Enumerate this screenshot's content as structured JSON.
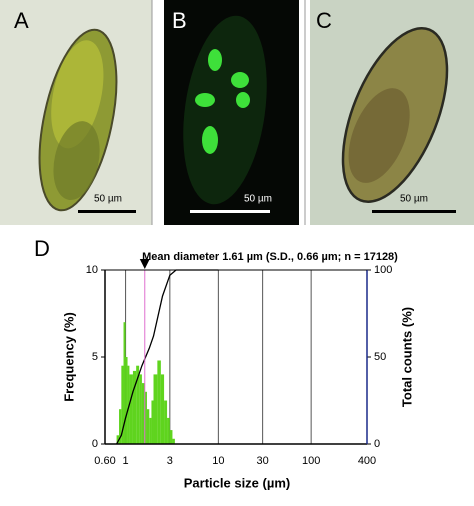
{
  "panels": [
    {
      "label": "A",
      "scale_bar": "50 µm"
    },
    {
      "label": "B",
      "scale_bar": "50 µm"
    },
    {
      "label": "C",
      "scale_bar": "50 µm"
    }
  ],
  "chart_data": {
    "type": "histogram",
    "label": "D",
    "annotation": "Mean diameter 1.61 µm (S.D., 0.66 µm; n = 17128)",
    "mean_marker": 1.61,
    "x_label": "Particle size (µm)",
    "y_label": "Frequency (%)",
    "y2_label": "Total counts (%)",
    "x_log": true,
    "xlim": [
      0.6,
      400
    ],
    "xticks": [
      {
        "value": 0.6,
        "label": "0.60"
      },
      1,
      3,
      10,
      30,
      100,
      400
    ],
    "ylim": [
      0,
      10
    ],
    "yticks": [
      0,
      5,
      10
    ],
    "y2lim": [
      0,
      100
    ],
    "y2ticks": [
      0,
      50,
      100
    ],
    "grid": true,
    "series": [
      {
        "color": "#5fd41e",
        "bins": [
          0.8,
          0.85,
          0.9,
          0.95,
          1.0,
          1.05,
          1.1,
          1.2,
          1.3,
          1.4,
          1.5,
          1.6,
          1.7,
          1.8,
          1.9,
          2.0,
          2.2,
          2.4,
          2.6,
          2.8,
          3.0,
          3.2,
          3.4
        ],
        "values": [
          0.5,
          2,
          4.5,
          7,
          5,
          4.5,
          4,
          4.2,
          4.5,
          4,
          3.5,
          3,
          2,
          1.5,
          2.5,
          4,
          4.8,
          4,
          2.5,
          1.5,
          0.8,
          0.3
        ]
      },
      {
        "color": "#000000",
        "axis": "y2",
        "x": [
          0.8,
          0.9,
          1,
          1.2,
          1.5,
          1.8,
          2,
          2.5,
          3,
          3.5,
          5,
          10
        ],
        "values": [
          0,
          5,
          15,
          30,
          45,
          55,
          62,
          85,
          97,
          100,
          100,
          100
        ]
      }
    ]
  }
}
